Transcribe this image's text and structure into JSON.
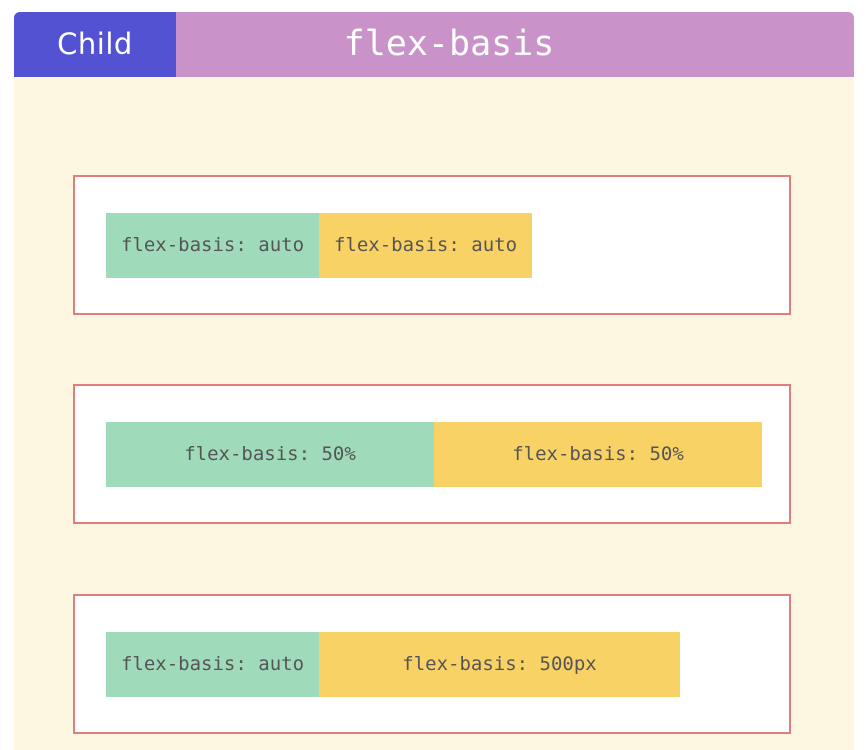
{
  "header": {
    "tag": "Child",
    "title": "flex-basis"
  },
  "examples": [
    {
      "items": [
        "flex-basis: auto",
        "flex-basis: auto"
      ]
    },
    {
      "items": [
        "flex-basis: 50%",
        "flex-basis: 50%"
      ]
    },
    {
      "items": [
        "flex-basis: auto",
        "flex-basis: 500px"
      ]
    }
  ],
  "colors": {
    "tag_background": "#5252d3",
    "header_background": "#c992c9",
    "page_background": "#fdf7e2",
    "container_border": "#e27d7d",
    "item_green": "#9fdbbb",
    "item_yellow": "#f9d266"
  }
}
